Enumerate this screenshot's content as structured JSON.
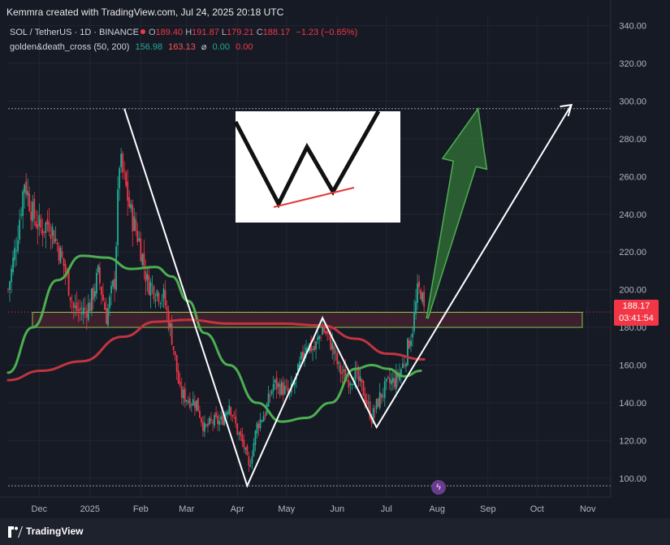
{
  "credit": "Kemmra created with TradingView.com, Jul 24, 2025 20:18 UTC",
  "symbol": {
    "name": "SOL / TetherUS · 1D · BINANCE",
    "open_label": "O",
    "open": "189.40",
    "high_label": "H",
    "high": "191.87",
    "low_label": "L",
    "low": "179.21",
    "close_label": "C",
    "close": "188.17",
    "change": "−1.23 (−0.65%)"
  },
  "indicator": {
    "name": "golden&death_cross (50, 200)",
    "v1": "156.98",
    "v2": "163.13",
    "sym": "⌀",
    "v3": "0.00",
    "v4": "0.00"
  },
  "price_tag": {
    "price": "188.17",
    "countdown": "03:41:54"
  },
  "brand": "TradingView",
  "flash_icon": "lightning-icon",
  "colors": {
    "background": "#161a25",
    "up": "#22ab94",
    "down": "#f23645",
    "ma_fast": "#4caf50",
    "ma_slow": "#c2343f",
    "zone_fill": "#4a2332",
    "zone_border": "#8bc34a",
    "drawing": "#ffffff",
    "arrow_fill": "#2e6b35"
  },
  "chart_data": {
    "type": "candlestick",
    "y_axis": {
      "ylim": [
        90,
        345
      ],
      "ticks": [
        100,
        120,
        140,
        160,
        180,
        200,
        220,
        240,
        260,
        280,
        300,
        320,
        340
      ]
    },
    "x_ticks": [
      "Dec",
      "2025",
      "Feb",
      "Mar",
      "Apr",
      "May",
      "Jun",
      "Jul",
      "Aug",
      "Sep",
      "Oct",
      "Nov"
    ],
    "x_range": [
      "2024-11-12",
      "2025-11-15"
    ],
    "horizontal_levels": [
      296,
      96
    ],
    "current_price": 188.17,
    "resistance_zone": [
      180,
      188
    ],
    "close_path": [
      [
        "2024-11-12",
        200
      ],
      [
        "2024-11-17",
        225
      ],
      [
        "2024-11-22",
        258
      ],
      [
        "2024-11-27",
        240
      ],
      [
        "2024-12-02",
        232
      ],
      [
        "2024-12-07",
        236
      ],
      [
        "2024-12-12",
        224
      ],
      [
        "2024-12-17",
        210
      ],
      [
        "2024-12-22",
        190
      ],
      [
        "2024-12-27",
        188
      ],
      [
        "2025-01-01",
        192
      ],
      [
        "2025-01-06",
        208
      ],
      [
        "2025-01-11",
        186
      ],
      [
        "2025-01-16",
        205
      ],
      [
        "2025-01-19",
        268
      ],
      [
        "2025-01-22",
        258
      ],
      [
        "2025-01-26",
        240
      ],
      [
        "2025-01-31",
        226
      ],
      [
        "2025-02-05",
        204
      ],
      [
        "2025-02-10",
        200
      ],
      [
        "2025-02-15",
        196
      ],
      [
        "2025-02-20",
        175
      ],
      [
        "2025-02-25",
        145
      ],
      [
        "2025-03-02",
        142
      ],
      [
        "2025-03-07",
        140
      ],
      [
        "2025-03-12",
        126
      ],
      [
        "2025-03-17",
        130
      ],
      [
        "2025-03-22",
        130
      ],
      [
        "2025-03-27",
        140
      ],
      [
        "2025-04-01",
        125
      ],
      [
        "2025-04-05",
        117
      ],
      [
        "2025-04-08",
        105
      ],
      [
        "2025-04-13",
        128
      ],
      [
        "2025-04-18",
        135
      ],
      [
        "2025-04-23",
        150
      ],
      [
        "2025-04-28",
        148
      ],
      [
        "2025-05-03",
        144
      ],
      [
        "2025-05-08",
        156
      ],
      [
        "2025-05-13",
        172
      ],
      [
        "2025-05-18",
        168
      ],
      [
        "2025-05-23",
        180
      ],
      [
        "2025-05-28",
        172
      ],
      [
        "2025-06-02",
        158
      ],
      [
        "2025-06-07",
        152
      ],
      [
        "2025-06-12",
        155
      ],
      [
        "2025-06-17",
        146
      ],
      [
        "2025-06-22",
        132
      ],
      [
        "2025-06-27",
        143
      ],
      [
        "2025-07-02",
        150
      ],
      [
        "2025-07-07",
        152
      ],
      [
        "2025-07-12",
        162
      ],
      [
        "2025-07-17",
        180
      ],
      [
        "2025-07-20",
        198
      ],
      [
        "2025-07-22",
        200
      ],
      [
        "2025-07-24",
        188
      ]
    ],
    "series": [
      {
        "name": "golden&death_cross (50, 200)",
        "role": "fast MA (50)",
        "color": "#4caf50",
        "points": [
          [
            "2024-11-12",
            156
          ],
          [
            "2024-11-27",
            180
          ],
          [
            "2024-12-12",
            205
          ],
          [
            "2024-12-27",
            218
          ],
          [
            "2025-01-11",
            217
          ],
          [
            "2025-01-26",
            211
          ],
          [
            "2025-02-10",
            212
          ],
          [
            "2025-02-20",
            207
          ],
          [
            "2025-03-02",
            194
          ],
          [
            "2025-03-12",
            177
          ],
          [
            "2025-03-27",
            160
          ],
          [
            "2025-04-13",
            140
          ],
          [
            "2025-04-28",
            130
          ],
          [
            "2025-05-13",
            132
          ],
          [
            "2025-05-28",
            140
          ],
          [
            "2025-06-12",
            158
          ],
          [
            "2025-06-22",
            160
          ],
          [
            "2025-07-02",
            158
          ],
          [
            "2025-07-12",
            154
          ],
          [
            "2025-07-22",
            157
          ]
        ]
      },
      {
        "name": "golden&death_cross (50, 200)",
        "role": "slow MA (200)",
        "color": "#c2343f",
        "points": [
          [
            "2024-11-12",
            152
          ],
          [
            "2024-12-02",
            157
          ],
          [
            "2024-12-27",
            162
          ],
          [
            "2025-01-21",
            175
          ],
          [
            "2025-02-10",
            183
          ],
          [
            "2025-03-02",
            184
          ],
          [
            "2025-03-27",
            182
          ],
          [
            "2025-04-28",
            182
          ],
          [
            "2025-05-23",
            181
          ],
          [
            "2025-06-12",
            174
          ],
          [
            "2025-07-02",
            166
          ],
          [
            "2025-07-24",
            163
          ]
        ]
      }
    ],
    "w_pattern_path": [
      [
        "2025-01-22",
        296
      ],
      [
        "2025-04-07",
        96
      ],
      [
        "2025-05-23",
        185
      ],
      [
        "2025-06-25",
        127
      ],
      [
        "2025-10-22",
        298
      ]
    ],
    "projection_arrow_path": [
      [
        "2025-07-26",
        185
      ],
      [
        "2025-08-26",
        296
      ]
    ]
  }
}
